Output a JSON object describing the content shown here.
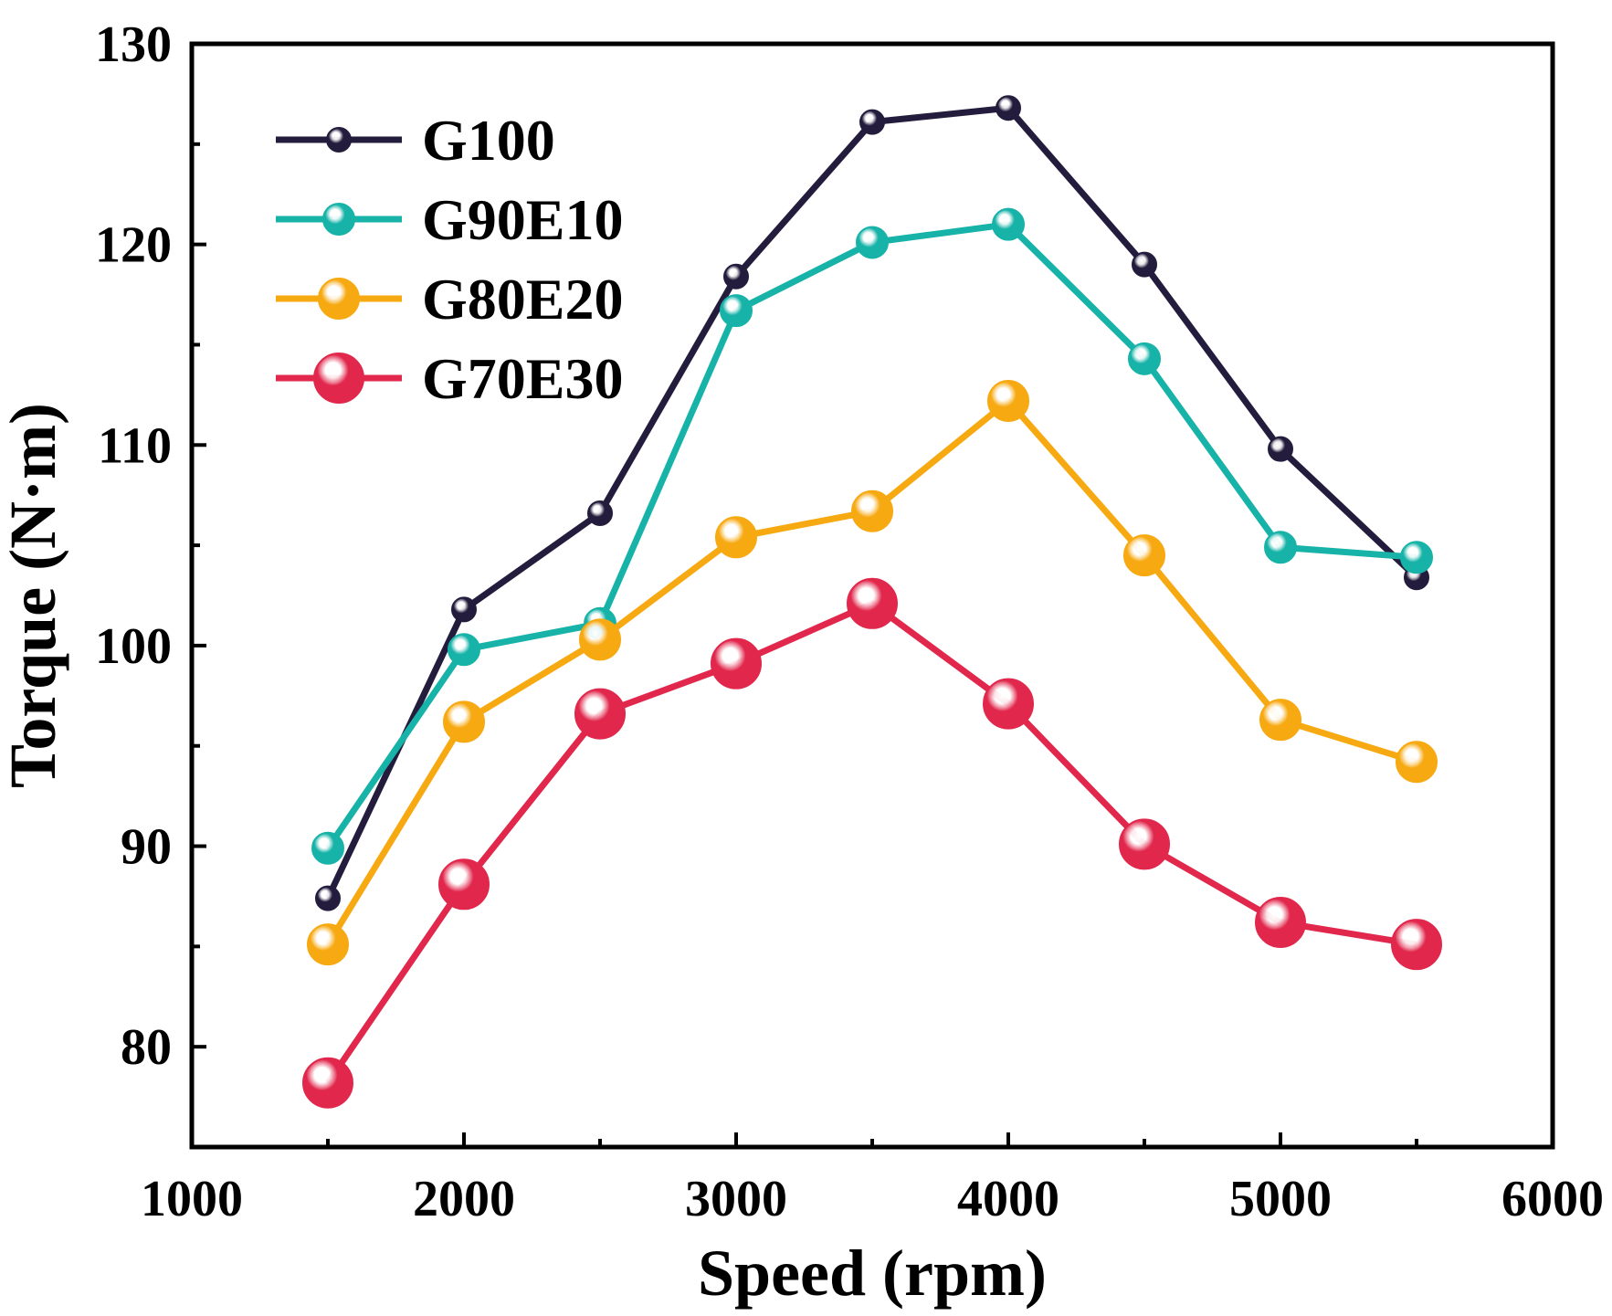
{
  "chart_data": {
    "type": "line",
    "title": "",
    "xlabel": "Speed (rpm)",
    "ylabel": "Torque (N·m)",
    "xlim": [
      1000,
      6000
    ],
    "ylim": [
      75,
      130
    ],
    "x_ticks": [
      1000,
      2000,
      3000,
      4000,
      5000,
      6000
    ],
    "y_ticks": [
      80,
      90,
      100,
      110,
      120,
      130
    ],
    "y_minor_ticks": [
      85,
      95,
      105,
      115,
      125
    ],
    "legend_position": "top-left",
    "x": [
      1500,
      2000,
      2500,
      3000,
      3500,
      4000,
      4500,
      5000,
      5500
    ],
    "series": [
      {
        "name": "G100",
        "color": "#241c3c",
        "marker_size": "small",
        "values": [
          87.4,
          101.8,
          106.6,
          118.4,
          126.1,
          126.8,
          119.0,
          109.8,
          103.4
        ]
      },
      {
        "name": "G90E10",
        "color": "#17b3a8",
        "marker_size": "medium",
        "values": [
          89.9,
          99.8,
          101.1,
          116.7,
          120.1,
          121.0,
          114.3,
          104.9,
          104.4
        ]
      },
      {
        "name": "G80E20",
        "color": "#f7a912",
        "marker_size": "large",
        "values": [
          85.1,
          96.2,
          100.3,
          105.4,
          106.7,
          112.2,
          104.5,
          96.3,
          94.2
        ]
      },
      {
        "name": "G70E30",
        "color": "#e1284c",
        "marker_size": "xlarge",
        "values": [
          78.2,
          88.1,
          96.6,
          99.1,
          102.1,
          97.1,
          90.1,
          86.2,
          85.1
        ]
      }
    ]
  }
}
